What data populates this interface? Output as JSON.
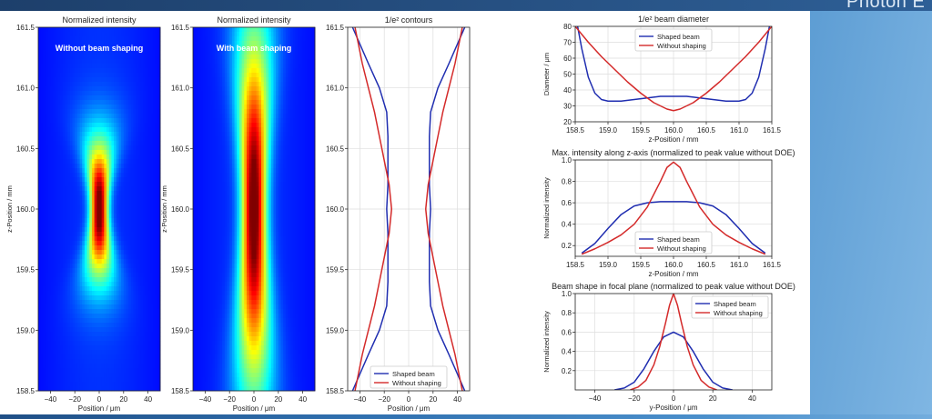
{
  "slide": {
    "brand_text": "Photon E"
  },
  "colors": {
    "shaped": "#1f2db0",
    "unshaped": "#d42a2a",
    "grid": "#dddddd",
    "axis": "#333333"
  },
  "chart_data": [
    {
      "type": "heatmap",
      "title": "Normalized intensity",
      "annotation": "Without beam shaping",
      "xlabel": "Position / μm",
      "ylabel": "z-Position / mm",
      "xlim": [
        -50,
        50
      ],
      "ylim": [
        158.5,
        161.5
      ],
      "x_ticks": [
        -40,
        -20,
        0,
        20,
        40
      ],
      "y_ticks": [
        158.5,
        159.0,
        159.5,
        160.0,
        160.5,
        161.0,
        161.5
      ],
      "y_tick_labels": [
        "158.5",
        "159.0",
        "159.5",
        "160.0",
        "160.5",
        "161.0",
        "161.5"
      ],
      "colormap": "jet",
      "peak_z": 160.0,
      "beam": {
        "z_half_width": 0.55,
        "min_width_um": 10,
        "max_width_um": 38
      }
    },
    {
      "type": "heatmap",
      "title": "Normalized intensity",
      "annotation": "With beam shaping",
      "xlabel": "Position / μm",
      "ylabel": "z-Position / mm",
      "xlim": [
        -50,
        50
      ],
      "ylim": [
        158.5,
        161.5
      ],
      "x_ticks": [
        -40,
        -20,
        0,
        20,
        40
      ],
      "y_ticks": [
        158.5,
        159.0,
        159.5,
        160.0,
        160.5,
        161.0,
        161.5
      ],
      "y_tick_labels": [
        "158.5",
        "159.0",
        "159.5",
        "160.0",
        "160.5",
        "161.0",
        "161.5"
      ],
      "colormap": "jet",
      "peak_z": 160.0,
      "beam": {
        "z_half_width": 1.0,
        "min_width_um": 14,
        "max_width_um": 30
      }
    },
    {
      "type": "line",
      "title": "1/e² contours",
      "xlabel": "Position / μm",
      "xlim": [
        -50,
        50
      ],
      "ylim": [
        158.5,
        161.5
      ],
      "x_ticks": [
        -40,
        -20,
        0,
        20,
        40
      ],
      "y_ticks": [
        158.5,
        159.0,
        159.5,
        160.0,
        160.5,
        161.0,
        161.5
      ],
      "y_tick_labels": [
        "158.5",
        "159.0",
        "159.5",
        "160.0",
        "160.5",
        "161.0",
        "161.5"
      ],
      "grid": true,
      "legend": "lower center",
      "series": [
        {
          "name": "Shaped beam",
          "z": [
            158.5,
            158.8,
            159.0,
            159.2,
            159.4,
            159.6,
            159.8,
            160.0,
            160.2,
            160.4,
            160.6,
            160.8,
            161.0,
            161.2,
            161.5
          ],
          "half_width": [
            46,
            33,
            24,
            18,
            17,
            17,
            17,
            18,
            17,
            17,
            17,
            18,
            24,
            33,
            46
          ]
        },
        {
          "name": "Without shaping",
          "z": [
            158.5,
            158.8,
            159.0,
            159.2,
            159.4,
            159.6,
            159.8,
            160.0,
            160.2,
            160.4,
            160.6,
            160.8,
            161.0,
            161.2,
            161.5
          ],
          "half_width": [
            44,
            38,
            33,
            28,
            24,
            20,
            16,
            14,
            16,
            20,
            24,
            28,
            33,
            38,
            44
          ]
        }
      ]
    },
    {
      "type": "line",
      "title": "1/e² beam diameter",
      "xlabel": "z-Position / mm",
      "ylabel": "Diameter / μm",
      "xlim": [
        158.5,
        161.5
      ],
      "ylim": [
        20,
        80
      ],
      "x_ticks": [
        158.5,
        159.0,
        159.5,
        160.0,
        160.5,
        161.0,
        161.5
      ],
      "x_tick_labels": [
        "158.5",
        "159.0",
        "159.5",
        "160.0",
        "160.5",
        "161.0",
        "161.5"
      ],
      "y_ticks": [
        20,
        30,
        40,
        50,
        60,
        70,
        80
      ],
      "y_tick_labels": [
        "20",
        "30",
        "40",
        "50",
        "60",
        "70",
        "80"
      ],
      "grid": true,
      "legend": "upper center",
      "series": [
        {
          "name": "Shaped beam",
          "x": [
            158.5,
            158.6,
            158.7,
            158.8,
            158.9,
            159.0,
            159.2,
            159.4,
            159.6,
            159.8,
            160.0,
            160.2,
            160.4,
            160.6,
            160.8,
            161.0,
            161.1,
            161.2,
            161.3,
            161.4,
            161.5
          ],
          "y": [
            88,
            66,
            48,
            38,
            34,
            33,
            33,
            34,
            35,
            36,
            36,
            36,
            35,
            34,
            33,
            33,
            34,
            38,
            48,
            66,
            88
          ]
        },
        {
          "name": "Without shaping",
          "x": [
            158.5,
            158.7,
            158.9,
            159.1,
            159.3,
            159.5,
            159.7,
            159.9,
            160.0,
            160.1,
            160.3,
            160.5,
            160.7,
            160.9,
            161.1,
            161.3,
            161.5
          ],
          "y": [
            80,
            70,
            61,
            53,
            45,
            38,
            32,
            28,
            27,
            28,
            32,
            38,
            45,
            53,
            61,
            70,
            80
          ]
        }
      ]
    },
    {
      "type": "line",
      "title": "Max. intensity along z-axis (normalized to peak value without DOE)",
      "xlabel": "z-Position / mm",
      "ylabel": "Normalized intensity",
      "xlim": [
        158.5,
        161.5
      ],
      "ylim": [
        0.1,
        1.0
      ],
      "x_ticks": [
        158.5,
        159.0,
        159.5,
        160.0,
        160.5,
        161.0,
        161.5
      ],
      "x_tick_labels": [
        "158.5",
        "159.0",
        "159.5",
        "160.0",
        "160.5",
        "161.0",
        "161.5"
      ],
      "y_ticks": [
        0.2,
        0.4,
        0.6,
        0.8,
        1.0
      ],
      "y_tick_labels": [
        "0.2",
        "0.4",
        "0.6",
        "0.8",
        "1.0"
      ],
      "grid": true,
      "legend": "lower center",
      "series": [
        {
          "name": "Shaped beam",
          "x": [
            158.6,
            158.8,
            159.0,
            159.2,
            159.4,
            159.6,
            159.8,
            160.0,
            160.2,
            160.4,
            160.6,
            160.8,
            161.0,
            161.2,
            161.4
          ],
          "y": [
            0.13,
            0.22,
            0.36,
            0.49,
            0.57,
            0.6,
            0.61,
            0.61,
            0.61,
            0.6,
            0.57,
            0.49,
            0.36,
            0.22,
            0.13
          ]
        },
        {
          "name": "Without shaping",
          "x": [
            158.6,
            158.8,
            159.0,
            159.2,
            159.4,
            159.6,
            159.8,
            159.9,
            160.0,
            160.1,
            160.2,
            160.4,
            160.6,
            160.8,
            161.0,
            161.2,
            161.4
          ],
          "y": [
            0.12,
            0.17,
            0.23,
            0.3,
            0.4,
            0.56,
            0.8,
            0.93,
            0.98,
            0.93,
            0.8,
            0.56,
            0.4,
            0.3,
            0.23,
            0.17,
            0.12
          ]
        }
      ]
    },
    {
      "type": "line",
      "title": "Beam shape in focal plane (normalized to peak value without DOE)",
      "xlabel": "y-Position / μm",
      "ylabel": "Normalized intensity",
      "xlim": [
        -50,
        50
      ],
      "ylim": [
        0.0,
        1.0
      ],
      "x_ticks": [
        -40,
        -20,
        0,
        20,
        40
      ],
      "x_tick_labels": [
        "−40",
        "−20",
        "0",
        "20",
        "40"
      ],
      "y_ticks": [
        0.2,
        0.4,
        0.6,
        0.8,
        1.0
      ],
      "y_tick_labels": [
        "0.2",
        "0.4",
        "0.6",
        "0.8",
        "1.0"
      ],
      "grid": true,
      "legend": "upper right",
      "series": [
        {
          "name": "Shaped beam",
          "x": [
            -30,
            -25,
            -20,
            -15,
            -10,
            -5,
            0,
            5,
            10,
            15,
            20,
            25,
            30
          ],
          "y": [
            0.0,
            0.02,
            0.08,
            0.22,
            0.4,
            0.55,
            0.6,
            0.55,
            0.4,
            0.22,
            0.08,
            0.02,
            0.0
          ]
        },
        {
          "name": "Without shaping",
          "x": [
            -22,
            -18,
            -14,
            -10,
            -7,
            -4,
            -2,
            0,
            2,
            4,
            7,
            10,
            14,
            18,
            22
          ],
          "y": [
            0.0,
            0.03,
            0.1,
            0.26,
            0.45,
            0.7,
            0.88,
            1.0,
            0.88,
            0.7,
            0.45,
            0.26,
            0.1,
            0.03,
            0.0
          ]
        }
      ]
    }
  ]
}
